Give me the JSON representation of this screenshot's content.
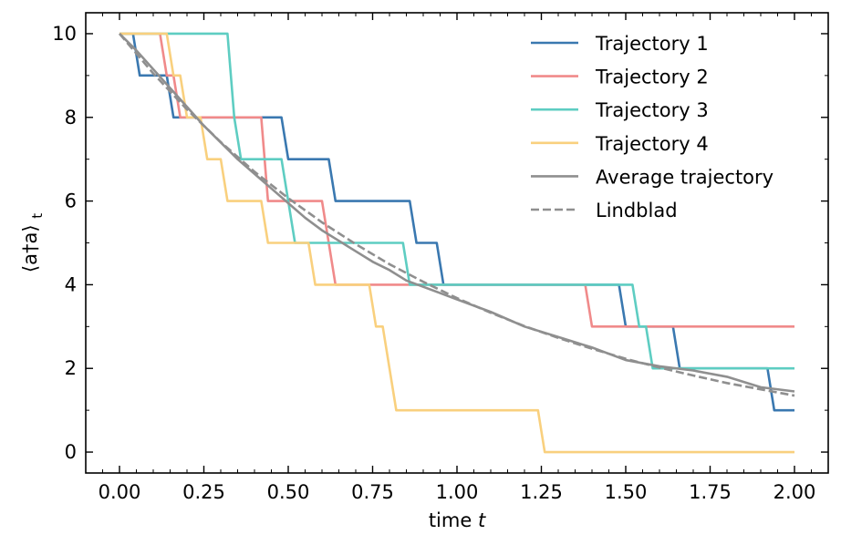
{
  "chart_data": {
    "type": "line",
    "xlabel": "time",
    "xlabel_var": "t",
    "ylabel": "⟨a†a⟩",
    "ylabel_sub": "t",
    "xlim": [
      -0.1,
      2.1
    ],
    "ylim": [
      -0.5,
      10.5
    ],
    "xticks": [
      "0.00",
      "0.25",
      "0.50",
      "0.75",
      "1.00",
      "1.25",
      "1.50",
      "1.75",
      "2.00"
    ],
    "yticks": [
      "0",
      "2",
      "4",
      "6",
      "8",
      "10"
    ],
    "legend_position": "top-right",
    "grid": false,
    "series": [
      {
        "name": "Trajectory 1",
        "color": "#3a78b0",
        "style": "solid",
        "points": [
          [
            0,
            10
          ],
          [
            0.04,
            10
          ],
          [
            0.06,
            9
          ],
          [
            0.14,
            9
          ],
          [
            0.16,
            8
          ],
          [
            0.48,
            8
          ],
          [
            0.5,
            7
          ],
          [
            0.62,
            7
          ],
          [
            0.64,
            6
          ],
          [
            0.86,
            6
          ],
          [
            0.88,
            5
          ],
          [
            0.94,
            5
          ],
          [
            0.96,
            4
          ],
          [
            1.48,
            4
          ],
          [
            1.5,
            3
          ],
          [
            1.64,
            3
          ],
          [
            1.66,
            2
          ],
          [
            1.92,
            2
          ],
          [
            1.94,
            1
          ],
          [
            2.0,
            1
          ]
        ]
      },
      {
        "name": "Trajectory 2",
        "color": "#f08a8a",
        "style": "solid",
        "points": [
          [
            0,
            10
          ],
          [
            0.12,
            10
          ],
          [
            0.14,
            9
          ],
          [
            0.16,
            9
          ],
          [
            0.18,
            8
          ],
          [
            0.42,
            8
          ],
          [
            0.44,
            6
          ],
          [
            0.6,
            6
          ],
          [
            0.64,
            4
          ],
          [
            1.38,
            4
          ],
          [
            1.4,
            3
          ],
          [
            2.0,
            3
          ]
        ]
      },
      {
        "name": "Trajectory 3",
        "color": "#5ecdc2",
        "style": "solid",
        "points": [
          [
            0,
            10
          ],
          [
            0.32,
            10
          ],
          [
            0.34,
            8
          ],
          [
            0.36,
            7
          ],
          [
            0.48,
            7
          ],
          [
            0.52,
            5
          ],
          [
            0.84,
            5
          ],
          [
            0.86,
            4
          ],
          [
            1.52,
            4
          ],
          [
            1.54,
            3
          ],
          [
            1.56,
            3
          ],
          [
            1.58,
            2
          ],
          [
            2.0,
            2
          ]
        ]
      },
      {
        "name": "Trajectory 4",
        "color": "#f9d07e",
        "style": "solid",
        "points": [
          [
            0,
            10
          ],
          [
            0.14,
            10
          ],
          [
            0.16,
            9
          ],
          [
            0.18,
            9
          ],
          [
            0.2,
            8
          ],
          [
            0.24,
            8
          ],
          [
            0.26,
            7
          ],
          [
            0.3,
            7
          ],
          [
            0.32,
            6
          ],
          [
            0.42,
            6
          ],
          [
            0.44,
            5
          ],
          [
            0.56,
            5
          ],
          [
            0.58,
            4
          ],
          [
            0.74,
            4
          ],
          [
            0.76,
            3
          ],
          [
            0.78,
            3
          ],
          [
            0.82,
            1
          ],
          [
            1.24,
            1
          ],
          [
            1.26,
            0
          ],
          [
            2.0,
            0
          ]
        ]
      },
      {
        "name": "Average trajectory",
        "color": "#8f8f8f",
        "style": "solid",
        "points": [
          [
            0,
            10
          ],
          [
            0.05,
            9.6
          ],
          [
            0.1,
            9.15
          ],
          [
            0.15,
            8.7
          ],
          [
            0.2,
            8.25
          ],
          [
            0.25,
            7.8
          ],
          [
            0.3,
            7.4
          ],
          [
            0.35,
            7.0
          ],
          [
            0.4,
            6.65
          ],
          [
            0.45,
            6.3
          ],
          [
            0.5,
            5.95
          ],
          [
            0.55,
            5.6
          ],
          [
            0.6,
            5.3
          ],
          [
            0.65,
            5.05
          ],
          [
            0.7,
            4.8
          ],
          [
            0.75,
            4.55
          ],
          [
            0.8,
            4.35
          ],
          [
            0.85,
            4.1
          ],
          [
            0.9,
            3.95
          ],
          [
            0.95,
            3.8
          ],
          [
            1.0,
            3.65
          ],
          [
            1.1,
            3.35
          ],
          [
            1.2,
            3.0
          ],
          [
            1.3,
            2.75
          ],
          [
            1.4,
            2.5
          ],
          [
            1.5,
            2.2
          ],
          [
            1.6,
            2.05
          ],
          [
            1.7,
            1.95
          ],
          [
            1.8,
            1.8
          ],
          [
            1.9,
            1.55
          ],
          [
            2.0,
            1.45
          ]
        ]
      },
      {
        "name": "Lindblad",
        "color": "#8f8f8f",
        "style": "dashed",
        "points": [
          [
            0,
            10.0
          ],
          [
            0.1,
            9.05
          ],
          [
            0.2,
            8.19
          ],
          [
            0.3,
            7.41
          ],
          [
            0.4,
            6.7
          ],
          [
            0.5,
            6.07
          ],
          [
            0.6,
            5.49
          ],
          [
            0.7,
            4.97
          ],
          [
            0.8,
            4.49
          ],
          [
            0.9,
            4.07
          ],
          [
            1.0,
            3.68
          ],
          [
            1.1,
            3.33
          ],
          [
            1.2,
            3.01
          ],
          [
            1.3,
            2.73
          ],
          [
            1.4,
            2.47
          ],
          [
            1.5,
            2.23
          ],
          [
            1.6,
            2.02
          ],
          [
            1.7,
            1.83
          ],
          [
            1.8,
            1.65
          ],
          [
            1.9,
            1.5
          ],
          [
            2.0,
            1.35
          ]
        ]
      }
    ]
  }
}
